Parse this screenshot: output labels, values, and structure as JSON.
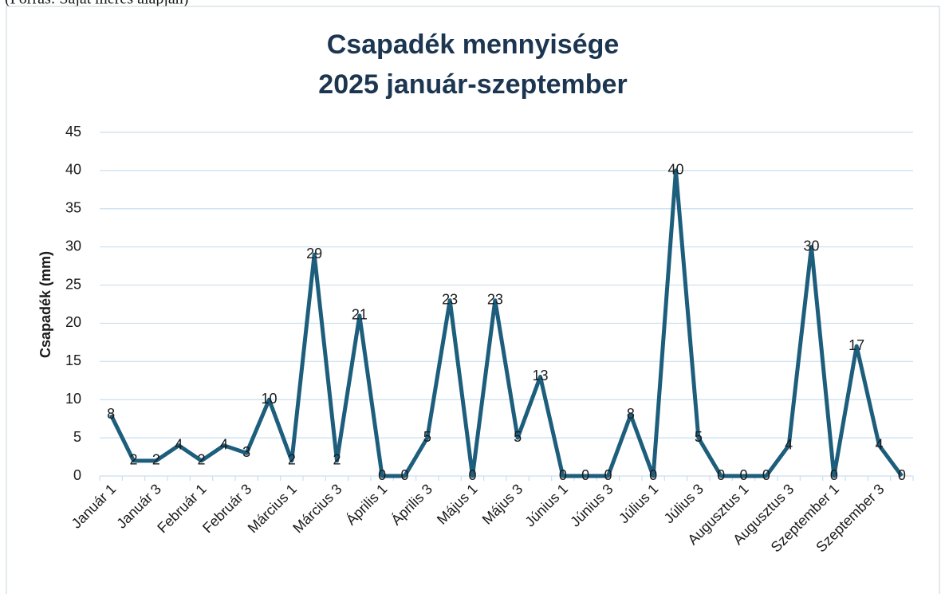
{
  "note": "(Forrás: Saját mérés alapján)",
  "chart_data": {
    "type": "line",
    "title": [
      "Csapadék mennyisége",
      "2025 január-szeptember"
    ],
    "y_label": "Csapadék (mm)",
    "categories": [
      "Január 1",
      null,
      "Január 3",
      null,
      "Február 1",
      null,
      "Február 3",
      null,
      "Március 1",
      null,
      "Március 3",
      null,
      "Április 1",
      null,
      "Április 3",
      null,
      "Május 1",
      null,
      "Május 3",
      null,
      "Június 1",
      null,
      "Június 3",
      null,
      "Július 1",
      null,
      "Július 3",
      null,
      "Augusztus 1",
      null,
      "Augusztus 3",
      null,
      "Szeptember 1",
      null,
      "Szeptember 3",
      null
    ],
    "series": [
      {
        "name": "Csapadék",
        "color": "#1d5e7c",
        "values": [
          8,
          2,
          2,
          4,
          2,
          4,
          3,
          10,
          2,
          29,
          2,
          21,
          0,
          0,
          5,
          23,
          0,
          23,
          5,
          13,
          0,
          0,
          0,
          8,
          0,
          40,
          5,
          0,
          0,
          0,
          4,
          30,
          0,
          17,
          4,
          0
        ]
      }
    ],
    "ylim": [
      0,
      45
    ],
    "yticks": [
      0,
      5,
      10,
      15,
      20,
      25,
      30,
      35,
      40,
      45
    ],
    "grid": true,
    "data_labels": true
  }
}
